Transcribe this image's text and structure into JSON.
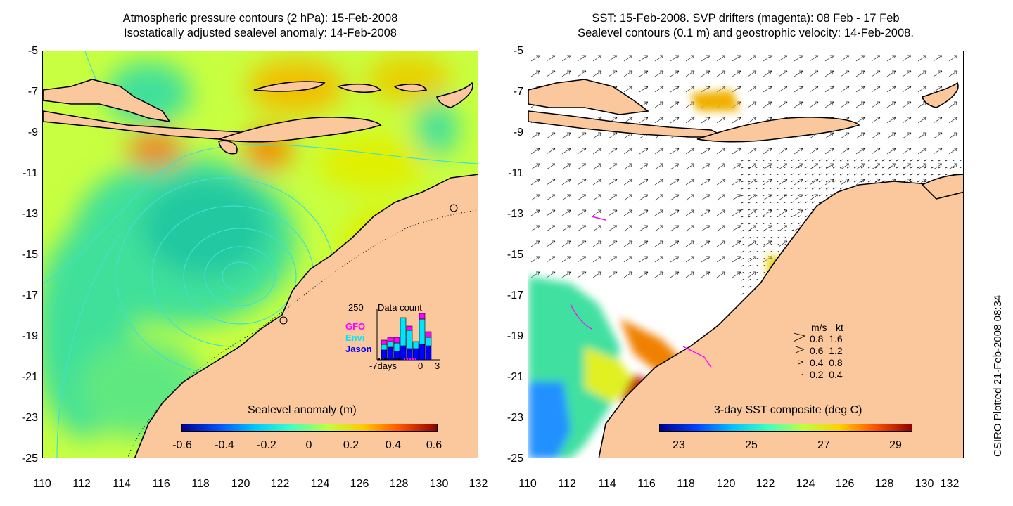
{
  "left_panel": {
    "title_line1": "Atmospheric pressure contours (2 hPa): 15-Feb-2008",
    "title_line2": "Isostatically adjusted sealevel anomaly: 14-Feb-2008",
    "colorbar_title": "Sealevel anomaly (m)",
    "colorbar_ticks": [
      "-0.6",
      "-0.4",
      "-0.2",
      "0",
      "0.2",
      "0.4",
      "0.6"
    ],
    "colorbar_range": [
      -0.6,
      0.6
    ],
    "inset": {
      "title": "Data count",
      "y_max_label": "250",
      "x_labels": [
        "-7days",
        "0",
        "3"
      ],
      "legend": [
        {
          "label": "GFO",
          "color": "#ff00ff"
        },
        {
          "label": "Envi",
          "color": "#00e5ff"
        },
        {
          "label": "Jason",
          "color": "#0000ff"
        }
      ]
    }
  },
  "right_panel": {
    "title_line1": "SST: 15-Feb-2008. SVP drifters (magenta): 08 Feb - 17 Feb",
    "title_line2": "Sealevel contours (0.1 m) and geostrophic velocity: 14-Feb-2008.",
    "colorbar_title": "3-day SST composite (deg C)",
    "colorbar_ticks": [
      "23",
      "25",
      "27",
      "29"
    ],
    "velocity_legend": {
      "headers": [
        "m/s",
        "kt"
      ],
      "rows": [
        [
          "0.8",
          "1.6"
        ],
        [
          "0.6",
          "1.2"
        ],
        [
          "0.4",
          "0.8"
        ],
        [
          "0.2",
          "0.4"
        ]
      ]
    }
  },
  "axes": {
    "y_ticks": [
      "-5",
      "-7",
      "-9",
      "-11",
      "-13",
      "-15",
      "-17",
      "-19",
      "-21",
      "-23",
      "-25"
    ],
    "x_ticks": [
      "110",
      "112",
      "114",
      "116",
      "118",
      "120",
      "122",
      "124",
      "126",
      "128",
      "130",
      "132"
    ],
    "lat_range": [
      -25,
      -5
    ],
    "lon_range": [
      110,
      132
    ]
  },
  "credit": "CSIRO Plotted 21-Feb-2008 08:34",
  "colors": {
    "land": "#fac89c",
    "sea_mean": "#c8ff40",
    "contour": "#40e0d0",
    "drifter": "#ff00ff"
  }
}
